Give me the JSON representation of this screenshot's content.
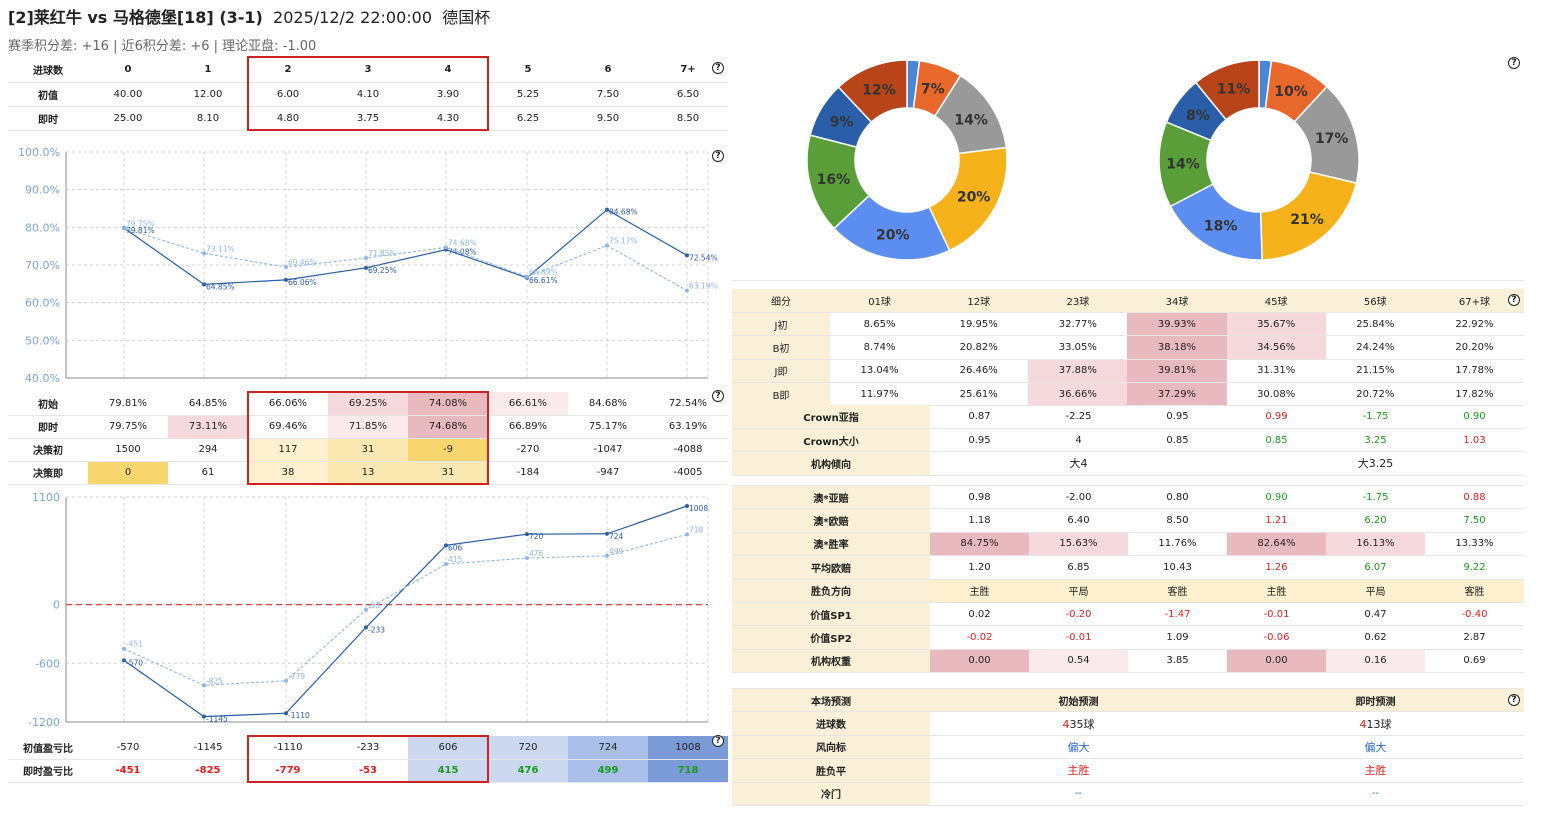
{
  "header": {
    "match": "[2]莱红牛 vs 马格德堡[18] (3-1)",
    "datetime": "2025/12/2 22:00:00",
    "league": "德国杯",
    "sub": "赛季积分差: +16 | 近6积分差: +6 | 理论亚盘: -1.00"
  },
  "goals_table": {
    "cols": [
      "进球数",
      "0",
      "1",
      "2",
      "3",
      "4",
      "5",
      "6",
      "7+"
    ],
    "rows": [
      {
        "label": "初值",
        "values": [
          "40.00",
          "12.00",
          "6.00",
          "4.10",
          "3.90",
          "5.25",
          "7.50",
          "6.50"
        ]
      },
      {
        "label": "即时",
        "values": [
          "25.00",
          "8.10",
          "4.80",
          "3.75",
          "4.30",
          "6.25",
          "9.50",
          "8.50"
        ]
      }
    ]
  },
  "chart_data": [
    {
      "type": "line",
      "title": "",
      "categories": [
        "0",
        "1",
        "2",
        "3",
        "4",
        "5",
        "6",
        "7+"
      ],
      "ylim": [
        40,
        100
      ],
      "yticks": [
        "100.0%",
        "90.0%",
        "80.0%",
        "70.0%",
        "60.0%",
        "50.0%",
        "40.0%"
      ],
      "series": [
        {
          "name": "初始",
          "values": [
            79.81,
            64.85,
            66.06,
            69.25,
            74.08,
            66.61,
            84.68,
            72.54
          ],
          "labels": [
            "79.81%",
            "64.85%",
            "66.06%",
            "69.25%",
            "74.08%",
            "66.61%",
            "84.68%",
            "72.54%"
          ]
        },
        {
          "name": "即时",
          "values": [
            79.75,
            73.11,
            69.46,
            71.85,
            74.68,
            66.89,
            75.17,
            63.19
          ],
          "labels": [
            "79.75%",
            "73.11%",
            "69.46%",
            "71.85%",
            "74.68%",
            "66.89%",
            "75.17%",
            "63.19%"
          ]
        }
      ]
    },
    {
      "type": "line",
      "title": "",
      "categories": [
        "0",
        "1",
        "2",
        "3",
        "4",
        "5",
        "6",
        "7+"
      ],
      "ylim": [
        -1200,
        1100
      ],
      "yticks": [
        "1100",
        "0",
        "-600",
        "-1200"
      ],
      "series": [
        {
          "name": "初值盈亏比",
          "values": [
            -570,
            -1145,
            -1110,
            -233,
            606,
            720,
            724,
            1008
          ]
        },
        {
          "name": "即时盈亏比",
          "values": [
            -451,
            -825,
            -779,
            -53,
            415,
            476,
            499,
            718
          ]
        }
      ]
    },
    {
      "type": "pie",
      "series": [
        {
          "name": "初",
          "values": [
            2,
            7,
            14,
            20,
            20,
            16,
            9,
            12
          ],
          "labels": [
            "",
            "7%",
            "14%",
            "20%",
            "20%",
            "16%",
            "9%",
            "12%"
          ]
        },
        {
          "name": "即",
          "values": [
            2,
            10,
            17,
            21,
            18,
            14,
            8,
            11
          ],
          "labels": [
            "",
            "10%",
            "17%",
            "21%",
            "18%",
            "14%",
            "8%",
            "11%"
          ]
        }
      ],
      "colors": [
        "#4a86d8",
        "#e8672a",
        "#999999",
        "#f5b21a",
        "#5b8ef0",
        "#5a9e3a",
        "#2a5ea8",
        "#b8441a"
      ]
    }
  ],
  "pct_table": {
    "rows": [
      {
        "label": "初始",
        "values": [
          "79.81%",
          "64.85%",
          "66.06%",
          "69.25%",
          "74.08%",
          "66.61%",
          "84.68%",
          "72.54%"
        ]
      },
      {
        "label": "即时",
        "values": [
          "79.75%",
          "73.11%",
          "69.46%",
          "71.85%",
          "74.68%",
          "66.89%",
          "75.17%",
          "63.19%"
        ]
      },
      {
        "label": "决策初",
        "values": [
          "1500",
          "294",
          "117",
          "31",
          "-9",
          "-270",
          "-1047",
          "-4088"
        ]
      },
      {
        "label": "决策即",
        "values": [
          "0",
          "61",
          "38",
          "13",
          "31",
          "-184",
          "-947",
          "-4005"
        ]
      }
    ]
  },
  "pl_table": {
    "rows": [
      {
        "label": "初值盈亏比",
        "values": [
          "-570",
          "-1145",
          "-1110",
          "-233",
          "606",
          "720",
          "724",
          "1008"
        ]
      },
      {
        "label": "即时盈亏比",
        "values": [
          "-451",
          "-825",
          "-779",
          "-53",
          "415",
          "476",
          "499",
          "718"
        ]
      }
    ]
  },
  "breakdown": {
    "cols": [
      "细分",
      "01球",
      "12球",
      "23球",
      "34球",
      "45球",
      "56球",
      "67+球"
    ],
    "rows": [
      {
        "label": "J初",
        "values": [
          "8.65%",
          "19.95%",
          "32.77%",
          "39.93%",
          "35.67%",
          "25.84%",
          "22.92%"
        ]
      },
      {
        "label": "B初",
        "values": [
          "8.74%",
          "20.82%",
          "33.05%",
          "38.18%",
          "34.56%",
          "24.24%",
          "20.20%"
        ]
      },
      {
        "label": "J即",
        "values": [
          "13.04%",
          "26.46%",
          "37.88%",
          "39.81%",
          "31.31%",
          "21.15%",
          "17.78%"
        ]
      },
      {
        "label": "B即",
        "values": [
          "11.97%",
          "25.61%",
          "36.66%",
          "37.29%",
          "30.08%",
          "20.72%",
          "17.82%"
        ]
      }
    ]
  },
  "crown": {
    "rows": [
      {
        "label": "Crown亚指",
        "values": [
          "0.87",
          "-2.25",
          "0.95",
          "0.99",
          "-1.75",
          "0.90"
        ]
      },
      {
        "label": "Crown大小",
        "values": [
          "0.95",
          "4",
          "0.85",
          "0.85",
          "3.25",
          "1.03"
        ]
      }
    ],
    "trend_label": "机构倾向",
    "trend": [
      "大4",
      "大3.25"
    ]
  },
  "macau": {
    "rows": [
      {
        "label": "澳*亚赔",
        "values": [
          "0.98",
          "-2.00",
          "0.80",
          "0.90",
          "-1.75",
          "0.88"
        ]
      },
      {
        "label": "澳*欧赔",
        "values": [
          "1.18",
          "6.40",
          "8.50",
          "1.21",
          "6.20",
          "7.50"
        ]
      },
      {
        "label": "澳*胜率",
        "values": [
          "84.75%",
          "15.63%",
          "11.76%",
          "82.64%",
          "16.13%",
          "13.33%"
        ]
      },
      {
        "label": "平均欧赔",
        "values": [
          "1.20",
          "6.85",
          "10.43",
          "1.26",
          "6.07",
          "9.22"
        ]
      },
      {
        "label": "胜负方向",
        "values": [
          "主胜",
          "平局",
          "客胜",
          "主胜",
          "平局",
          "客胜"
        ]
      },
      {
        "label": "价值SP1",
        "values": [
          "0.02",
          "-0.20",
          "-1.47",
          "-0.01",
          "0.47",
          "-0.40"
        ]
      },
      {
        "label": "价值SP2",
        "values": [
          "-0.02",
          "-0.01",
          "1.09",
          "-0.06",
          "0.62",
          "2.87"
        ]
      },
      {
        "label": "机构权重",
        "values": [
          "0.00",
          "0.54",
          "3.85",
          "0.00",
          "0.16",
          "0.69"
        ]
      }
    ]
  },
  "prediction": {
    "title": "本场预测",
    "init_label": "初始预测",
    "live_label": "即时预测",
    "rows": [
      {
        "label": "进球数",
        "init_a": "4",
        "init_b": "35球",
        "live_a": "4",
        "live_b": "13球"
      },
      {
        "label": "风向标",
        "init": "偏大",
        "live": "偏大"
      },
      {
        "label": "胜负平",
        "init": "主胜",
        "live": "主胜"
      },
      {
        "label": "冷门",
        "init": "--",
        "live": "--"
      }
    ]
  },
  "help": "?"
}
